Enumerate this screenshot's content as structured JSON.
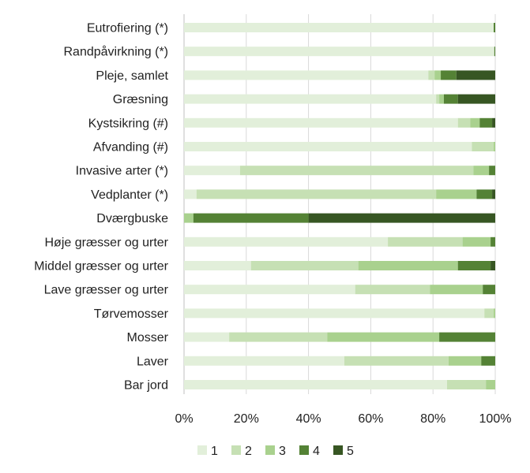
{
  "chart_data": {
    "type": "bar",
    "orientation": "horizontal",
    "stacked": "percent",
    "categories": [
      "Eutrofiering (*)",
      "Randpåvirkning (*)",
      "Pleje, samlet",
      "Græsning",
      "Kystsikring (#)",
      "Afvanding (#)",
      "Invasive arter (*)",
      "Vedplanter (*)",
      "Dværgbuske",
      "Høje græsser og urter",
      "Middel græsser og urter",
      "Lave græsser og urter",
      "Tørvemosser",
      "Mosser",
      "Laver",
      "Bar jord"
    ],
    "series": [
      {
        "name": "1",
        "color": "#e2efda",
        "values": [
          99.5,
          99.7,
          78.5,
          81.0,
          88.0,
          92.5,
          18.0,
          4.0,
          0.0,
          65.5,
          21.5,
          55.0,
          96.5,
          14.5,
          51.5,
          84.5
        ]
      },
      {
        "name": "2",
        "color": "#c6e0b4",
        "values": [
          0.0,
          0.0,
          2.0,
          1.0,
          4.0,
          7.0,
          75.0,
          77.0,
          0.0,
          24.0,
          34.5,
          24.0,
          3.0,
          31.5,
          33.5,
          12.5
        ]
      },
      {
        "name": "3",
        "color": "#a9d18e",
        "values": [
          0.0,
          0.0,
          2.0,
          1.5,
          3.0,
          0.5,
          5.0,
          13.0,
          3.0,
          9.0,
          32.0,
          17.0,
          0.5,
          36.0,
          10.5,
          3.0
        ]
      },
      {
        "name": "4",
        "color": "#548235",
        "values": [
          0.5,
          0.3,
          5.0,
          4.5,
          4.0,
          0.0,
          2.0,
          5.0,
          37.0,
          1.5,
          10.5,
          4.0,
          0.0,
          18.0,
          4.5,
          0.0
        ]
      },
      {
        "name": "5",
        "color": "#375623",
        "values": [
          0.0,
          0.0,
          12.5,
          12.0,
          1.0,
          0.0,
          0.0,
          1.0,
          60.0,
          0.0,
          1.5,
          0.0,
          0.0,
          0.0,
          0.0,
          0.0
        ]
      }
    ],
    "xlim": [
      0,
      100
    ],
    "x_ticks": [
      "0%",
      "20%",
      "40%",
      "60%",
      "80%",
      "100%"
    ],
    "grid": "vertical",
    "legend": "bottom"
  }
}
